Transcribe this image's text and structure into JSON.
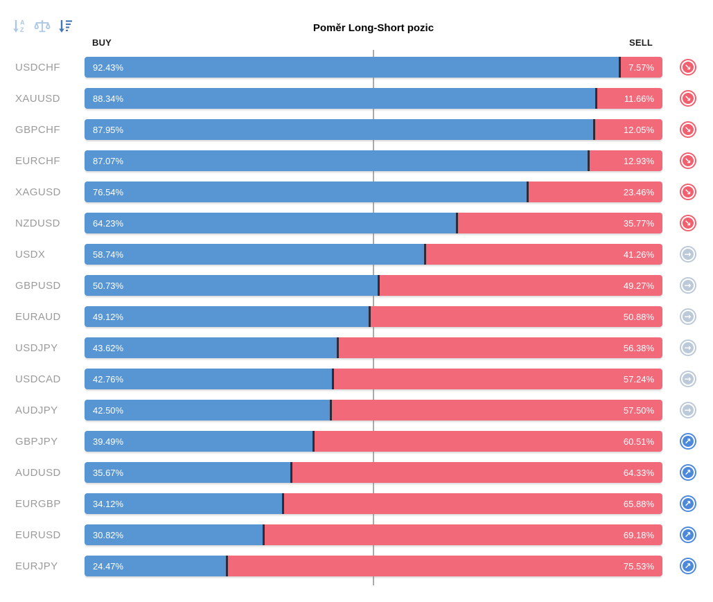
{
  "title": "Poměr Long-Short pozic",
  "columns": {
    "buy": "BUY",
    "sell": "SELL"
  },
  "toolbar": {
    "icons": [
      {
        "name": "sort-alphabetical-icon",
        "active": false,
        "color": "#aec8e4"
      },
      {
        "name": "balance-scale-icon",
        "active": false,
        "color": "#aec8e4"
      },
      {
        "name": "sort-by-value-icon",
        "active": true,
        "color": "#4377b9"
      }
    ]
  },
  "colors": {
    "buy_bar": "#5795d3",
    "sell_bar": "#f2697a",
    "segment_divider": "#312b38",
    "gridline": "#ababab",
    "pair_label": "#9b9b9b",
    "trend_down": "#f25f6e",
    "trend_flat": "#bcc9d8",
    "trend_up": "#4d89db"
  },
  "trend_glyphs": {
    "down": "↘",
    "flat": "→",
    "up": "↗"
  },
  "rows": [
    {
      "pair": "USDCHF",
      "buy": 92.43,
      "sell": 7.57,
      "buy_label": "92.43%",
      "sell_label": "7.57%",
      "trend": "down"
    },
    {
      "pair": "XAUUSD",
      "buy": 88.34,
      "sell": 11.66,
      "buy_label": "88.34%",
      "sell_label": "11.66%",
      "trend": "down"
    },
    {
      "pair": "GBPCHF",
      "buy": 87.95,
      "sell": 12.05,
      "buy_label": "87.95%",
      "sell_label": "12.05%",
      "trend": "down"
    },
    {
      "pair": "EURCHF",
      "buy": 87.07,
      "sell": 12.93,
      "buy_label": "87.07%",
      "sell_label": "12.93%",
      "trend": "down"
    },
    {
      "pair": "XAGUSD",
      "buy": 76.54,
      "sell": 23.46,
      "buy_label": "76.54%",
      "sell_label": "23.46%",
      "trend": "down"
    },
    {
      "pair": "NZDUSD",
      "buy": 64.23,
      "sell": 35.77,
      "buy_label": "64.23%",
      "sell_label": "35.77%",
      "trend": "down"
    },
    {
      "pair": "USDX",
      "buy": 58.74,
      "sell": 41.26,
      "buy_label": "58.74%",
      "sell_label": "41.26%",
      "trend": "flat"
    },
    {
      "pair": "GBPUSD",
      "buy": 50.73,
      "sell": 49.27,
      "buy_label": "50.73%",
      "sell_label": "49.27%",
      "trend": "flat"
    },
    {
      "pair": "EURAUD",
      "buy": 49.12,
      "sell": 50.88,
      "buy_label": "49.12%",
      "sell_label": "50.88%",
      "trend": "flat"
    },
    {
      "pair": "USDJPY",
      "buy": 43.62,
      "sell": 56.38,
      "buy_label": "43.62%",
      "sell_label": "56.38%",
      "trend": "flat"
    },
    {
      "pair": "USDCAD",
      "buy": 42.76,
      "sell": 57.24,
      "buy_label": "42.76%",
      "sell_label": "57.24%",
      "trend": "flat"
    },
    {
      "pair": "AUDJPY",
      "buy": 42.5,
      "sell": 57.5,
      "buy_label": "42.50%",
      "sell_label": "57.50%",
      "trend": "flat"
    },
    {
      "pair": "GBPJPY",
      "buy": 39.49,
      "sell": 60.51,
      "buy_label": "39.49%",
      "sell_label": "60.51%",
      "trend": "up"
    },
    {
      "pair": "AUDUSD",
      "buy": 35.67,
      "sell": 64.33,
      "buy_label": "35.67%",
      "sell_label": "64.33%",
      "trend": "up"
    },
    {
      "pair": "EURGBP",
      "buy": 34.12,
      "sell": 65.88,
      "buy_label": "34.12%",
      "sell_label": "65.88%",
      "trend": "up"
    },
    {
      "pair": "EURUSD",
      "buy": 30.82,
      "sell": 69.18,
      "buy_label": "30.82%",
      "sell_label": "69.18%",
      "trend": "up"
    },
    {
      "pair": "EURJPY",
      "buy": 24.47,
      "sell": 75.53,
      "buy_label": "24.47%",
      "sell_label": "75.53%",
      "trend": "up"
    }
  ],
  "chart_data": {
    "type": "bar",
    "orientation": "horizontal-stacked",
    "title": "Poměr Long-Short pozic",
    "categories": [
      "USDCHF",
      "XAUUSD",
      "GBPCHF",
      "EURCHF",
      "XAGUSD",
      "NZDUSD",
      "USDX",
      "GBPUSD",
      "EURAUD",
      "USDJPY",
      "USDCAD",
      "AUDJPY",
      "GBPJPY",
      "AUDUSD",
      "EURGBP",
      "EURUSD",
      "EURJPY"
    ],
    "series": [
      {
        "name": "BUY",
        "values": [
          92.43,
          88.34,
          87.95,
          87.07,
          76.54,
          64.23,
          58.74,
          50.73,
          49.12,
          43.62,
          42.76,
          42.5,
          39.49,
          35.67,
          34.12,
          30.82,
          24.47
        ]
      },
      {
        "name": "SELL",
        "values": [
          7.57,
          11.66,
          12.05,
          12.93,
          23.46,
          35.77,
          41.26,
          49.27,
          50.88,
          56.38,
          57.24,
          57.5,
          60.51,
          64.33,
          65.88,
          69.18,
          75.53
        ]
      }
    ],
    "units": "%",
    "xlim": [
      0,
      100
    ],
    "gridline_at": 50,
    "legend_position": "top-inline",
    "grid": "single-center-line",
    "trend_indicators": [
      "down",
      "down",
      "down",
      "down",
      "down",
      "down",
      "flat",
      "flat",
      "flat",
      "flat",
      "flat",
      "flat",
      "up",
      "up",
      "up",
      "up",
      "up"
    ]
  }
}
